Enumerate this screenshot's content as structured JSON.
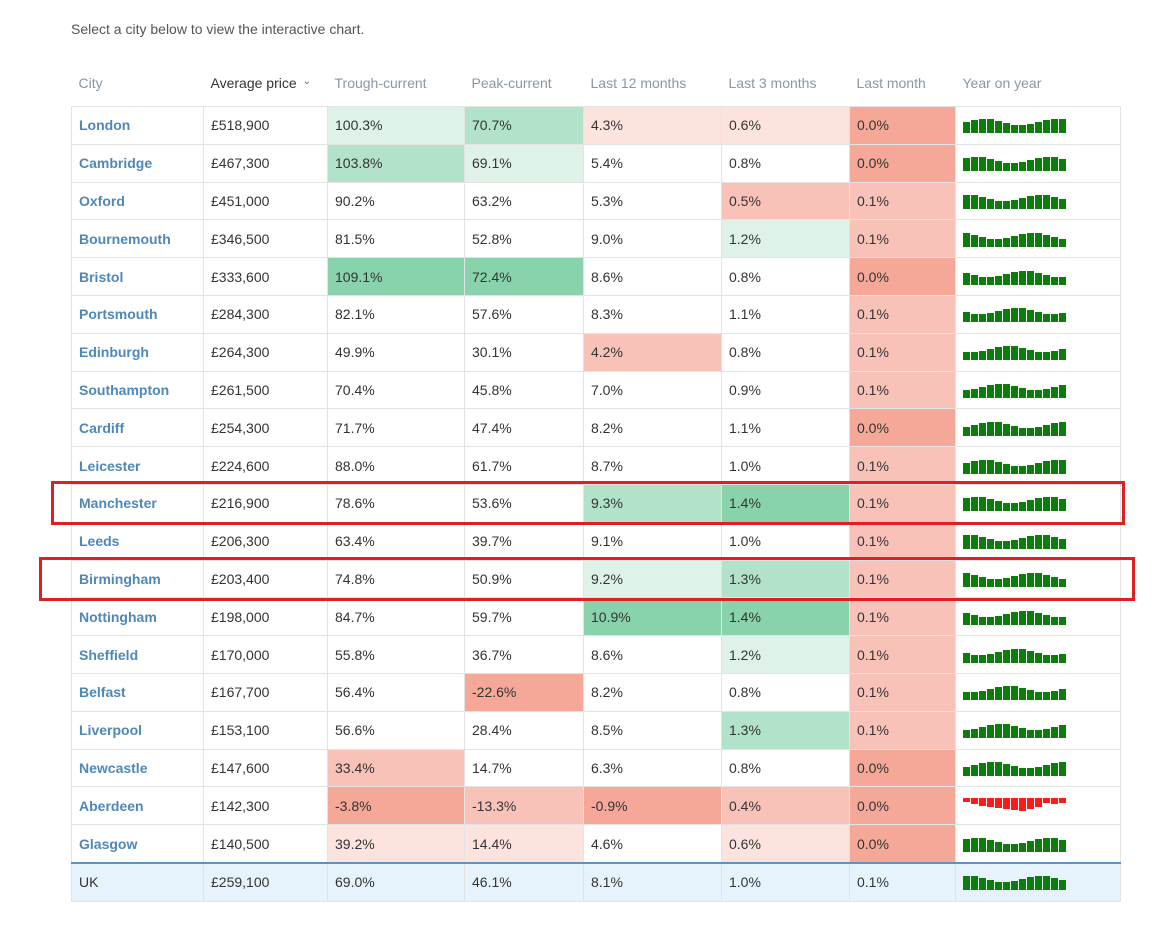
{
  "intro_text": "Select a city below to view the interactive chart.",
  "colors": {
    "green_1": "#dff2e7",
    "green_2": "#b2e2c9",
    "green_3": "#88d3ab",
    "red_1": "#fde3de",
    "red_2": "#f9c2b8",
    "red_3": "#f5a898",
    "spark_positive": "#0a7d0a",
    "spark_negative": "#ff1a1a",
    "highlight": "#e02020"
  },
  "table": {
    "headers": [
      "City",
      "Average price",
      "Trough-current",
      "Peak-current",
      "Last 12 months",
      "Last 3 months",
      "Last month",
      "Year on year"
    ],
    "sorted_column": 1,
    "rows": [
      {
        "city": "London",
        "cells": [
          "£518,900",
          "100.3%",
          "70.7%",
          "4.3%",
          "0.6%",
          "0.0%"
        ],
        "tints": [
          "",
          "g1",
          "g2",
          "r1",
          "r1",
          "r3"
        ],
        "highlighted": false
      },
      {
        "city": "Cambridge",
        "cells": [
          "£467,300",
          "103.8%",
          "69.1%",
          "5.4%",
          "0.8%",
          "0.0%"
        ],
        "tints": [
          "",
          "g2",
          "g1",
          "",
          "",
          "r3"
        ],
        "highlighted": false
      },
      {
        "city": "Oxford",
        "cells": [
          "£451,000",
          "90.2%",
          "63.2%",
          "5.3%",
          "0.5%",
          "0.1%"
        ],
        "tints": [
          "",
          "",
          "",
          "",
          "r2",
          "r2"
        ],
        "highlighted": false
      },
      {
        "city": "Bournemouth",
        "cells": [
          "£346,500",
          "81.5%",
          "52.8%",
          "9.0%",
          "1.2%",
          "0.1%"
        ],
        "tints": [
          "",
          "",
          "",
          "",
          "g1",
          "r2"
        ],
        "highlighted": false
      },
      {
        "city": "Bristol",
        "cells": [
          "£333,600",
          "109.1%",
          "72.4%",
          "8.6%",
          "0.8%",
          "0.0%"
        ],
        "tints": [
          "",
          "g3",
          "g3",
          "",
          "",
          "r3"
        ],
        "highlighted": false
      },
      {
        "city": "Portsmouth",
        "cells": [
          "£284,300",
          "82.1%",
          "57.6%",
          "8.3%",
          "1.1%",
          "0.1%"
        ],
        "tints": [
          "",
          "",
          "",
          "",
          "",
          "r2"
        ],
        "highlighted": false
      },
      {
        "city": "Edinburgh",
        "cells": [
          "£264,300",
          "49.9%",
          "30.1%",
          "4.2%",
          "0.8%",
          "0.1%"
        ],
        "tints": [
          "",
          "",
          "",
          "r2",
          "",
          "r2"
        ],
        "highlighted": false
      },
      {
        "city": "Southampton",
        "cells": [
          "£261,500",
          "70.4%",
          "45.8%",
          "7.0%",
          "0.9%",
          "0.1%"
        ],
        "tints": [
          "",
          "",
          "",
          "",
          "",
          "r2"
        ],
        "highlighted": false
      },
      {
        "city": "Cardiff",
        "cells": [
          "£254,300",
          "71.7%",
          "47.4%",
          "8.2%",
          "1.1%",
          "0.0%"
        ],
        "tints": [
          "",
          "",
          "",
          "",
          "",
          "r3"
        ],
        "highlighted": false
      },
      {
        "city": "Leicester",
        "cells": [
          "£224,600",
          "88.0%",
          "61.7%",
          "8.7%",
          "1.0%",
          "0.1%"
        ],
        "tints": [
          "",
          "",
          "",
          "",
          "",
          "r2"
        ],
        "highlighted": false
      },
      {
        "city": "Manchester",
        "cells": [
          "£216,900",
          "78.6%",
          "53.6%",
          "9.3%",
          "1.4%",
          "0.1%"
        ],
        "tints": [
          "",
          "",
          "",
          "g2",
          "g3",
          "r2"
        ],
        "highlighted": true
      },
      {
        "city": "Leeds",
        "cells": [
          "£206,300",
          "63.4%",
          "39.7%",
          "9.1%",
          "1.0%",
          "0.1%"
        ],
        "tints": [
          "",
          "",
          "",
          "",
          "",
          "r2"
        ],
        "highlighted": false
      },
      {
        "city": "Birmingham",
        "cells": [
          "£203,400",
          "74.8%",
          "50.9%",
          "9.2%",
          "1.3%",
          "0.1%"
        ],
        "tints": [
          "",
          "",
          "",
          "g1",
          "g2",
          "r2"
        ],
        "highlighted": true
      },
      {
        "city": "Nottingham",
        "cells": [
          "£198,000",
          "84.7%",
          "59.7%",
          "10.9%",
          "1.4%",
          "0.1%"
        ],
        "tints": [
          "",
          "",
          "",
          "g3",
          "g3",
          "r2"
        ],
        "highlighted": false
      },
      {
        "city": "Sheffield",
        "cells": [
          "£170,000",
          "55.8%",
          "36.7%",
          "8.6%",
          "1.2%",
          "0.1%"
        ],
        "tints": [
          "",
          "",
          "",
          "",
          "g1",
          "r2"
        ],
        "highlighted": false
      },
      {
        "city": "Belfast",
        "cells": [
          "£167,700",
          "56.4%",
          "-22.6%",
          "8.2%",
          "0.8%",
          "0.1%"
        ],
        "tints": [
          "",
          "",
          "r3",
          "",
          "",
          "r2"
        ],
        "highlighted": false
      },
      {
        "city": "Liverpool",
        "cells": [
          "£153,100",
          "56.6%",
          "28.4%",
          "8.5%",
          "1.3%",
          "0.1%"
        ],
        "tints": [
          "",
          "",
          "",
          "",
          "g2",
          "r2"
        ],
        "highlighted": false
      },
      {
        "city": "Newcastle",
        "cells": [
          "£147,600",
          "33.4%",
          "14.7%",
          "6.3%",
          "0.8%",
          "0.0%"
        ],
        "tints": [
          "",
          "r2",
          "",
          "",
          "",
          "r3"
        ],
        "highlighted": false
      },
      {
        "city": "Aberdeen",
        "cells": [
          "£142,300",
          "-3.8%",
          "-13.3%",
          "-0.9%",
          "0.4%",
          "0.0%"
        ],
        "tints": [
          "",
          "r3",
          "r2",
          "r3",
          "r2",
          "r3"
        ],
        "highlighted": false
      },
      {
        "city": "Glasgow",
        "cells": [
          "£140,500",
          "39.2%",
          "14.4%",
          "4.6%",
          "0.6%",
          "0.0%"
        ],
        "tints": [
          "",
          "r1",
          "r1",
          "",
          "r1",
          "r3"
        ],
        "highlighted": false
      }
    ],
    "total": {
      "city": "UK",
      "cells": [
        "£259,100",
        "69.0%",
        "46.1%",
        "8.1%",
        "1.0%",
        "0.1%"
      ]
    }
  }
}
